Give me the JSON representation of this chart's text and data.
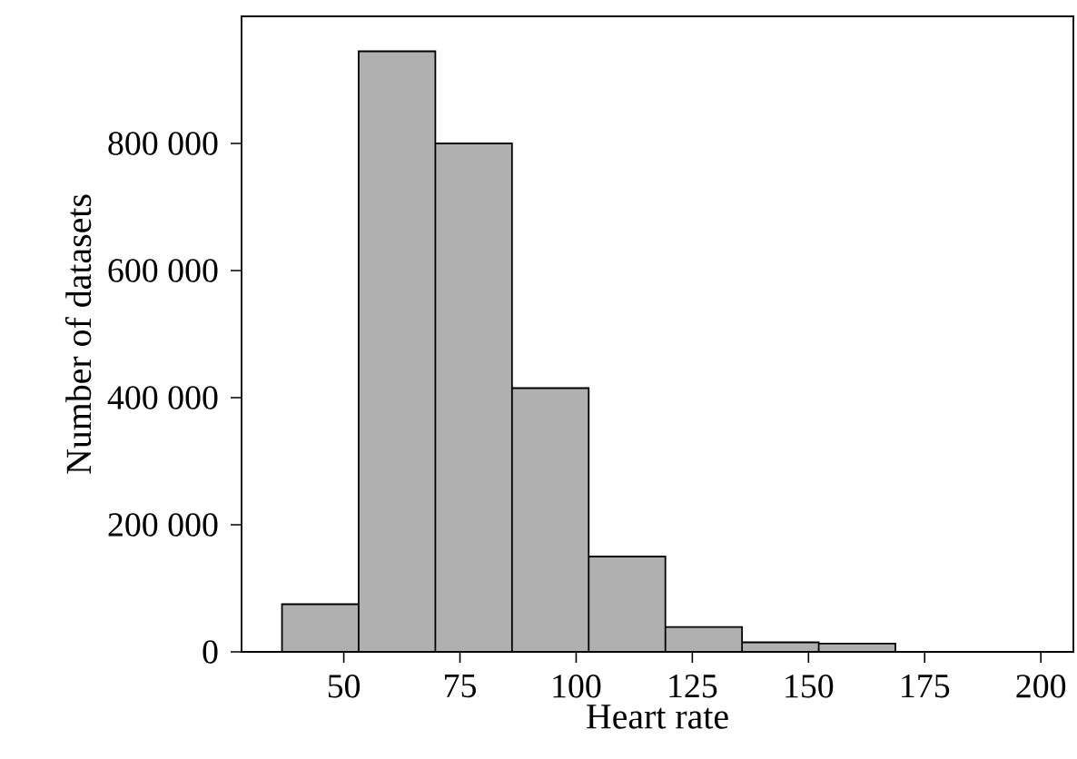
{
  "chart_data": {
    "type": "histogram",
    "xlabel": "Heart rate",
    "ylabel": "Number of datasets",
    "bins": [
      36.7,
      53.2,
      69.7,
      86.2,
      102.7,
      119.2,
      135.7,
      152.2,
      168.7
    ],
    "values": [
      75000,
      945000,
      800000,
      415000,
      150000,
      39000,
      15000,
      13000
    ],
    "color": "#b0b0b0",
    "xlim": [
      28,
      207
    ],
    "xticks": [
      50,
      75,
      100,
      125,
      150,
      175,
      200
    ],
    "ylim": [
      0,
      1000000
    ],
    "yticks": [
      {
        "value": 0,
        "label": "0"
      },
      {
        "value": 200000,
        "label": "200 000"
      },
      {
        "value": 400000,
        "label": "400 000"
      },
      {
        "value": 600000,
        "label": "600 000"
      },
      {
        "value": 800000,
        "label": "800 000"
      }
    ]
  }
}
